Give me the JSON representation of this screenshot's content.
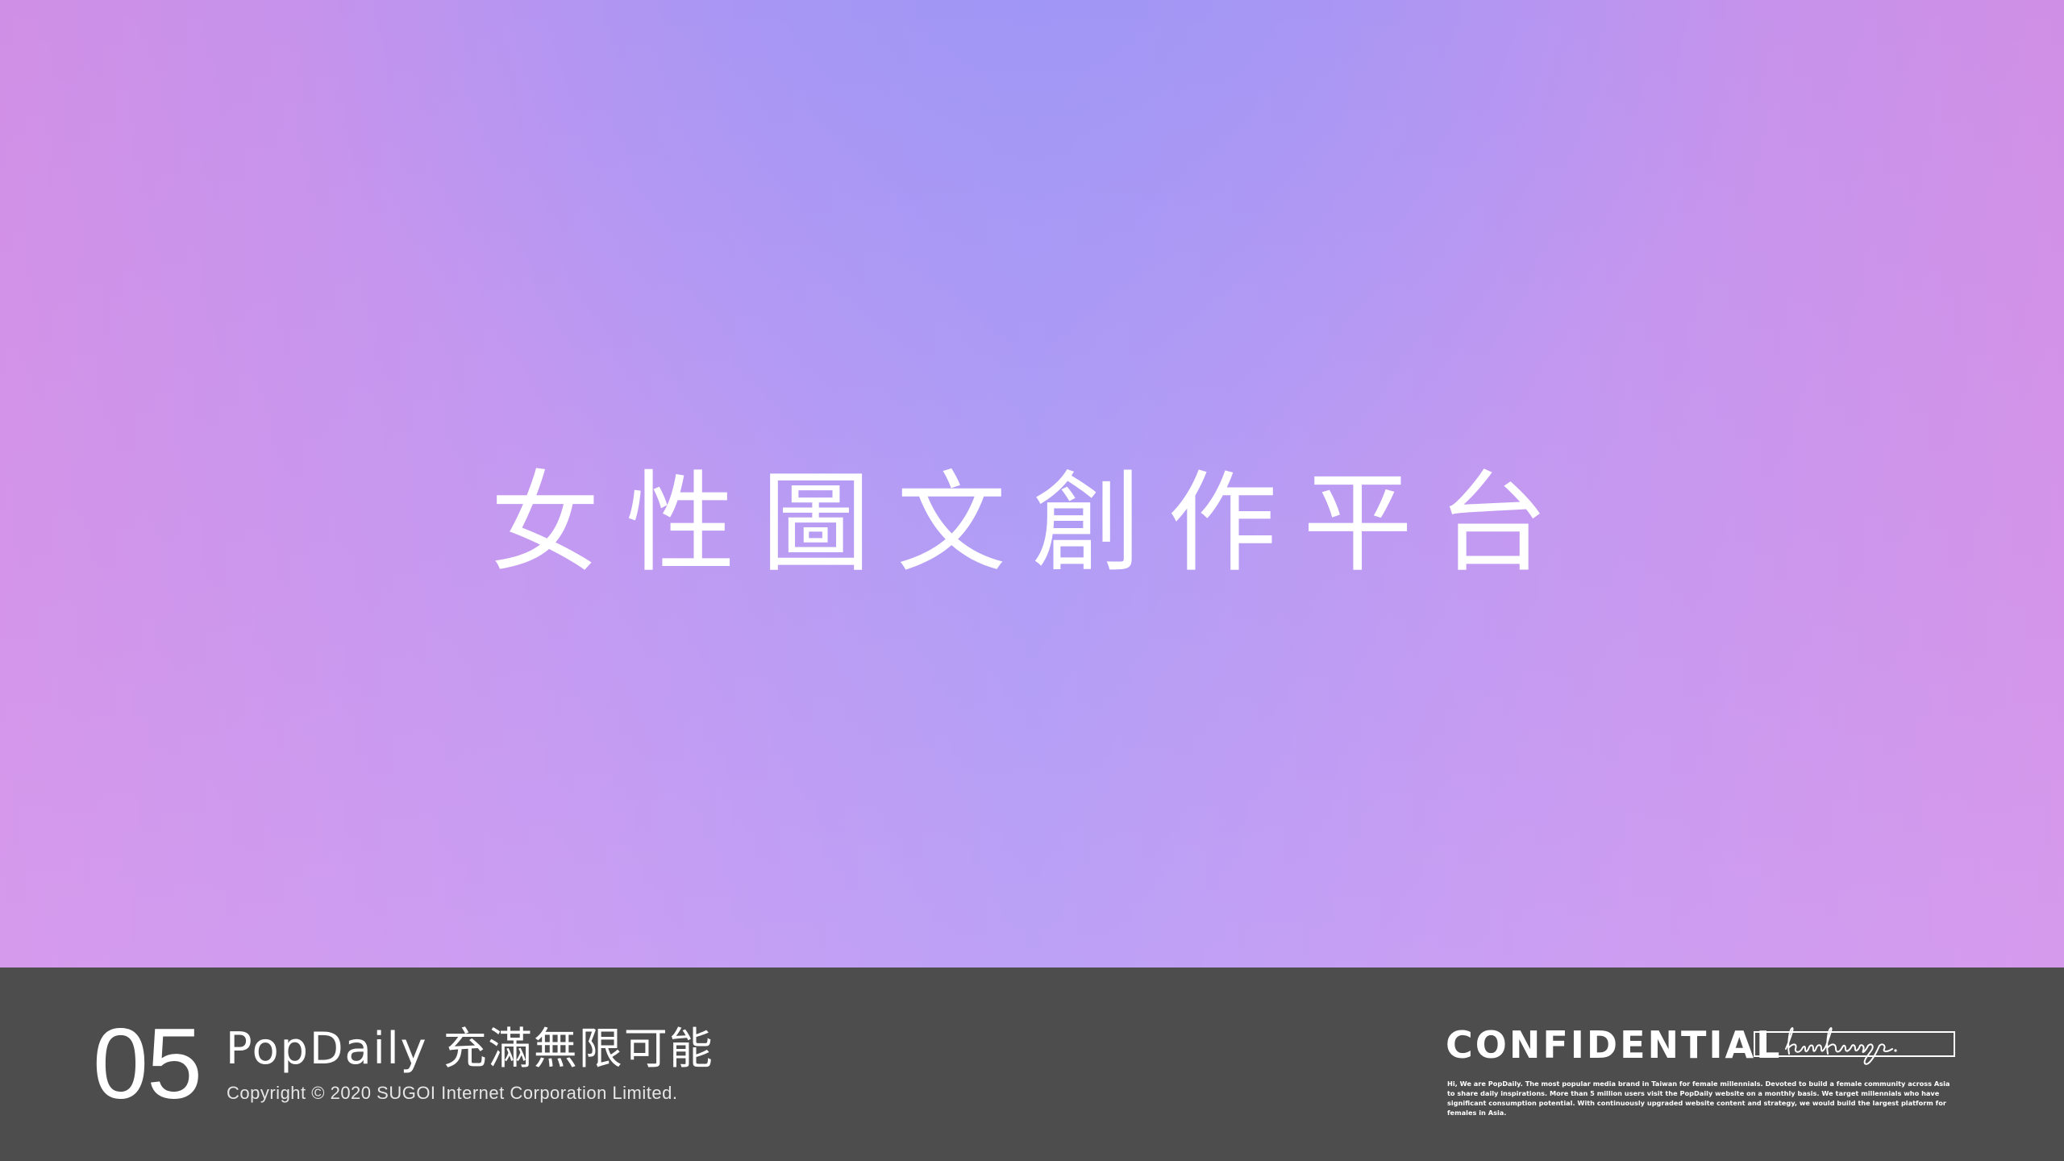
{
  "hero": {
    "title": "女性圖文創作平台",
    "gradient_colors": [
      "#d08fe6",
      "#bf95ef",
      "#a89af5"
    ]
  },
  "footer": {
    "page_number": "05",
    "title": "PopDaily 充滿無限可能",
    "copyright": "Copyright © 2020 SUGOI Internet Corporation Limited.",
    "confidential_label": "CONFIDENTIAL",
    "signature": "kimhung.",
    "confidential_blurb": "Hi, We are PopDaily. The most popular media brand in Taiwan for female millennials. Devoted to build a female community across Asia to share daily inspirations. More than 5 million users visit the PopDaily website on a monthly basis. We target millennials who have significant consumption potential. With continuously upgraded website content and strategy, we would build the largest platform for females in Asia.",
    "background_color": "#4d4d4d"
  }
}
